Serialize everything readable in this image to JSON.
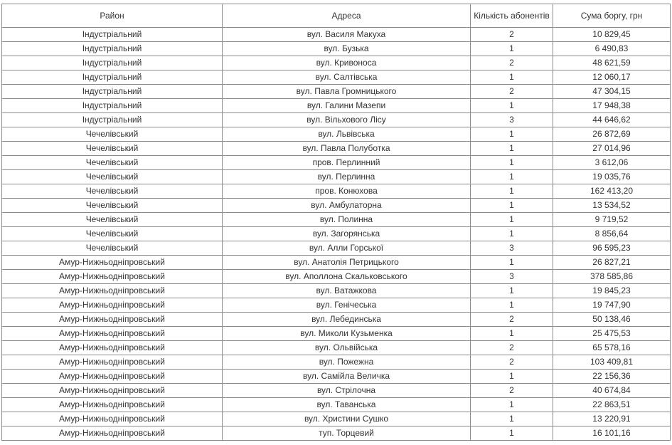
{
  "table": {
    "headers": [
      "Район",
      "Адреса",
      "Кількість абонентів",
      "Сума боргу, грн"
    ],
    "rows": [
      [
        "Індустріальний",
        "вул. Василя Макуха",
        "2",
        "10 829,45"
      ],
      [
        "Індустріальний",
        "вул. Бузька",
        "1",
        "6 490,83"
      ],
      [
        "Індустріальний",
        "вул. Кривоноса",
        "2",
        "48 621,59"
      ],
      [
        "Індустріальний",
        "вул. Салтівська",
        "1",
        "12 060,17"
      ],
      [
        "Індустріальний",
        "вул. Павла Громницького",
        "2",
        "47 304,15"
      ],
      [
        "Індустріальний",
        "вул. Галини Мазепи",
        "1",
        "17 948,38"
      ],
      [
        "Індустріальний",
        "вул. Вільхового Лісу",
        "3",
        "44 646,62"
      ],
      [
        "Чечелівський",
        "вул. Львівська",
        "1",
        "26 872,69"
      ],
      [
        "Чечелівський",
        "вул. Павла Полуботка",
        "1",
        "27 014,96"
      ],
      [
        "Чечелівський",
        "пров. Перлинний",
        "1",
        "3 612,06"
      ],
      [
        "Чечелівський",
        "вул. Перлинна",
        "1",
        "19 035,76"
      ],
      [
        "Чечелівський",
        "пров. Конюхова",
        "1",
        "162 413,20"
      ],
      [
        "Чечелівський",
        "вул. Амбулаторна",
        "1",
        "13 534,52"
      ],
      [
        "Чечелівський",
        "вул. Полинна",
        "1",
        "9 719,52"
      ],
      [
        "Чечелівський",
        "вул. Загорянська",
        "1",
        "8 856,64"
      ],
      [
        "Чечелівський",
        "вул. Алли Горської",
        "3",
        "96 595,23"
      ],
      [
        "Амур-Нижньодніпровський",
        "вул. Анатолія Петрицького",
        "1",
        "26 827,21"
      ],
      [
        "Амур-Нижньодніпровський",
        "вул. Аполлона Скальковського",
        "3",
        "378 585,86"
      ],
      [
        "Амур-Нижньодніпровський",
        "вул. Ватажкова",
        "1",
        "19 845,23"
      ],
      [
        "Амур-Нижньодніпровський",
        "вул. Генічеська",
        "1",
        "19 747,90"
      ],
      [
        "Амур-Нижньодніпровський",
        "вул. Лебединська",
        "2",
        "50 138,46"
      ],
      [
        "Амур-Нижньодніпровський",
        "вул. Миколи Кузьменка",
        "1",
        "25 475,53"
      ],
      [
        "Амур-Нижньодніпровський",
        "вул. Ольвійська",
        "2",
        "65 578,16"
      ],
      [
        "Амур-Нижньодніпровський",
        "вул. Пожежна",
        "2",
        "103 409,81"
      ],
      [
        "Амур-Нижньодніпровський",
        "вул. Самійла Величка",
        "1",
        "22 156,36"
      ],
      [
        "Амур-Нижньодніпровський",
        "вул. Стрілочна",
        "2",
        "40 674,84"
      ],
      [
        "Амур-Нижньодніпровський",
        "вул. Таванська",
        "1",
        "22 863,51"
      ],
      [
        "Амур-Нижньодніпровський",
        "вул. Христини Сушко",
        "1",
        "13 220,91"
      ],
      [
        "Амур-Нижньодніпровський",
        "туп. Торцевий",
        "1",
        "16 101,16"
      ]
    ]
  }
}
